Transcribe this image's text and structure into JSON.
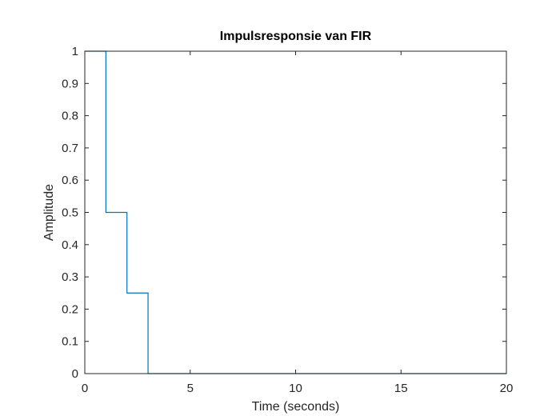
{
  "chart_data": {
    "type": "line",
    "style": "stairs",
    "title": "Impulsresponsie van FIR",
    "xlabel": "Time (seconds)",
    "ylabel": "Amplitude",
    "xlim": [
      0,
      20
    ],
    "ylim": [
      0,
      1
    ],
    "xticks": [
      0,
      5,
      10,
      15,
      20
    ],
    "yticks": [
      0,
      0.1,
      0.2,
      0.3,
      0.4,
      0.5,
      0.6,
      0.7,
      0.8,
      0.9,
      1
    ],
    "grid": false,
    "series": [
      {
        "color": "#0072BD",
        "x": [
          0,
          1,
          2,
          3,
          20
        ],
        "y": [
          1,
          0.5,
          0.25,
          0,
          0
        ]
      }
    ],
    "baseline": {
      "y": 0,
      "x_range": [
        0,
        3
      ],
      "style": "dotted",
      "color": "#000000"
    }
  }
}
